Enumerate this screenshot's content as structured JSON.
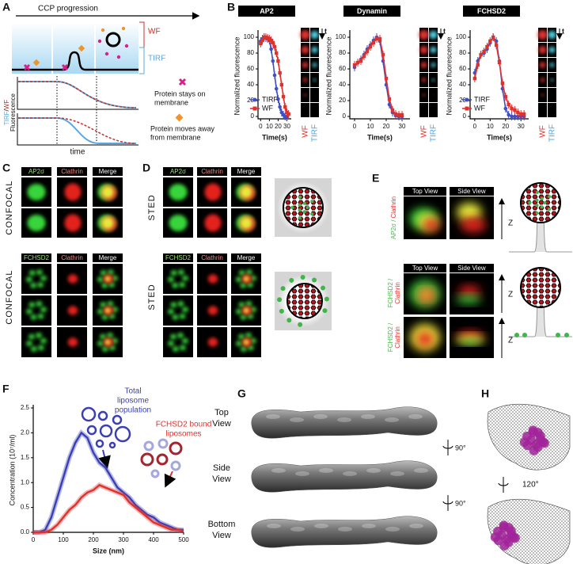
{
  "panels": {
    "A": {
      "letter": "A",
      "arrow_label": "CCP progression",
      "wf": "WF",
      "tirf": "TIRF",
      "y_label_tirf": "TIRF",
      "y_label_sep": "/",
      "y_label_wf": "WF",
      "y_label": "Fluorescence",
      "x_label": "time",
      "stays": [
        "Protein stays on",
        "membrane"
      ],
      "moves": [
        "Protein moves away",
        "from membrane"
      ]
    },
    "B": {
      "letter": "B",
      "strips": [
        {
          "time": "t",
          "wf": "WF",
          "tirf": "TIRF"
        },
        {
          "time": "t",
          "wf": "WF",
          "tirf": "TIRF"
        },
        {
          "time": "t",
          "wf": "WF",
          "tirf": "TIRF"
        }
      ]
    },
    "C": {
      "letter": "C",
      "top": {
        "headers": [
          "AP2σ",
          "Clathrin",
          "Merge"
        ],
        "method": "CONFOCAL"
      },
      "bottom": {
        "headers": [
          "FCHSD2",
          "Clathrin",
          "Merge"
        ],
        "method": "CONFOCAL"
      }
    },
    "D": {
      "letter": "D",
      "top": {
        "headers": [
          "AP2σ",
          "Clathrin",
          "Merge"
        ],
        "method": "STED"
      },
      "bottom": {
        "headers": [
          "FCHSD2",
          "Clathrin",
          "Merge"
        ],
        "method": "STED"
      }
    },
    "E": {
      "letter": "E",
      "top": {
        "headers": [
          "Top View",
          "Side View"
        ],
        "protein": "AP2σ /",
        "clathrin": "Clathrin",
        "axis": "Z"
      },
      "bottom": {
        "headers": [
          "Top View",
          "Side View"
        ],
        "rows": [
          {
            "protein": "FCHSD2 /",
            "clathrin": "Clathrin",
            "axis": "Z"
          },
          {
            "protein": "FCHSD2 /",
            "clathrin": "Clathrin",
            "axis": "Z"
          }
        ]
      }
    },
    "F": {
      "letter": "F",
      "total": [
        "Total",
        "liposome",
        "population"
      ],
      "bound": [
        "FCHSD2 bound",
        "liposomes"
      ]
    },
    "G": {
      "letter": "G",
      "views": [
        [
          "Top",
          "View"
        ],
        [
          "Side",
          "View"
        ],
        [
          "Bottom",
          "View"
        ]
      ],
      "rotations": [
        "90°",
        "90°"
      ]
    },
    "H": {
      "letter": "H",
      "rotation": "120°"
    }
  },
  "chart_data": [
    {
      "type": "line",
      "title": "AP2",
      "x_label": "Time(s)",
      "y_label": "Normalized fluorescence",
      "legend": "lower left",
      "x": [
        0,
        2,
        4,
        6,
        8,
        10,
        12,
        14,
        16,
        18,
        20,
        22,
        24,
        26,
        28,
        30,
        32
      ],
      "xlim": [
        -3,
        35
      ],
      "xticks": [
        0,
        10,
        20,
        30
      ],
      "ylim": [
        -3,
        105
      ],
      "yticks": [
        0,
        20,
        40,
        60,
        80,
        100
      ],
      "series": [
        {
          "name": "TIRF",
          "color": "#3f4fc6",
          "marker": "circle",
          "values": [
            95,
            98,
            100,
            99,
            98,
            96,
            85,
            70,
            52,
            35,
            22,
            12,
            5,
            2,
            0,
            0,
            null
          ]
        },
        {
          "name": "WF",
          "color": "#e0322d",
          "marker": "square",
          "values": [
            92,
            96,
            100,
            100,
            99,
            98,
            96,
            93,
            88,
            80,
            70,
            55,
            40,
            25,
            12,
            5,
            3
          ]
        }
      ]
    },
    {
      "type": "line",
      "title": "Dynamin",
      "x_label": "Time(s)",
      "y_label": "Normalized fluorescence",
      "x": [
        0,
        2,
        4,
        6,
        8,
        10,
        12,
        14,
        16,
        18,
        20,
        22,
        24,
        26,
        28,
        30,
        32
      ],
      "xlim": [
        -3,
        35
      ],
      "xticks": [
        0,
        10,
        20,
        30
      ],
      "ylim": [
        -3,
        105
      ],
      "yticks": [
        0,
        20,
        40,
        60,
        80,
        100
      ],
      "series": [
        {
          "color": "#3f4fc6",
          "marker": "circle",
          "values": [
            62,
            68,
            72,
            78,
            85,
            90,
            96,
            100,
            95,
            70,
            40,
            15,
            5,
            1,
            0,
            0,
            null
          ]
        },
        {
          "color": "#e0322d",
          "marker": "square",
          "values": [
            65,
            68,
            70,
            76,
            82,
            88,
            93,
            98,
            98,
            78,
            48,
            22,
            8,
            3,
            2,
            2,
            null
          ]
        }
      ]
    },
    {
      "type": "line",
      "title": "FCHSD2",
      "x_label": "Time(s)",
      "y_label": "Normalized fluorescence",
      "legend": "lower left",
      "x": [
        0,
        2,
        4,
        6,
        8,
        10,
        12,
        14,
        16,
        18,
        20,
        22,
        24,
        26,
        28,
        30,
        32
      ],
      "xlim": [
        -3,
        35
      ],
      "xticks": [
        0,
        10,
        20,
        30
      ],
      "ylim": [
        -3,
        105
      ],
      "yticks": [
        0,
        20,
        40,
        60,
        80,
        100
      ],
      "series": [
        {
          "name": "TIRF",
          "color": "#3f4fc6",
          "marker": "circle",
          "values": [
            55,
            70,
            78,
            80,
            85,
            93,
            100,
            95,
            70,
            35,
            10,
            2,
            0,
            0,
            0,
            0,
            0
          ]
        },
        {
          "name": "WF",
          "color": "#e0322d",
          "marker": "square",
          "values": [
            48,
            65,
            78,
            82,
            88,
            95,
            100,
            90,
            68,
            42,
            25,
            15,
            10,
            8,
            5,
            3,
            3
          ]
        }
      ]
    },
    {
      "type": "line",
      "x_label": "Size (nm)",
      "y_label": "Concentration (10⁷/ml)",
      "x": [
        0,
        20,
        40,
        60,
        80,
        100,
        120,
        140,
        160,
        180,
        200,
        220,
        240,
        260,
        280,
        300,
        320,
        340,
        360,
        380,
        400,
        420,
        440,
        460,
        480,
        500
      ],
      "xlim": [
        0,
        500
      ],
      "xticks": [
        0,
        100,
        200,
        300,
        400,
        500
      ],
      "ylim": [
        0,
        2.5
      ],
      "yticks": [
        {
          "value": 0,
          "label": "0.0"
        },
        0.5,
        {
          "value": 1,
          "label": "1.0"
        },
        1.5,
        {
          "value": 2,
          "label": "2.0"
        },
        2.5
      ],
      "series": [
        {
          "color": "#3a3fb5",
          "values": [
            0,
            0,
            0.05,
            0.3,
            0.7,
            1.1,
            1.5,
            1.8,
            2.0,
            1.9,
            1.6,
            1.4,
            1.3,
            1.1,
            0.9,
            0.8,
            0.7,
            0.55,
            0.45,
            0.35,
            0.3,
            0.2,
            0.15,
            0.1,
            0.05,
            0.05
          ]
        },
        {
          "color": "#e0322d",
          "values": [
            0,
            0,
            0,
            0.05,
            0.15,
            0.3,
            0.45,
            0.55,
            0.7,
            0.8,
            0.85,
            0.95,
            0.9,
            0.85,
            0.8,
            0.75,
            0.6,
            0.5,
            0.4,
            0.3,
            0.2,
            0.15,
            0.1,
            0.05,
            0.05,
            0.02
          ]
        }
      ]
    }
  ]
}
